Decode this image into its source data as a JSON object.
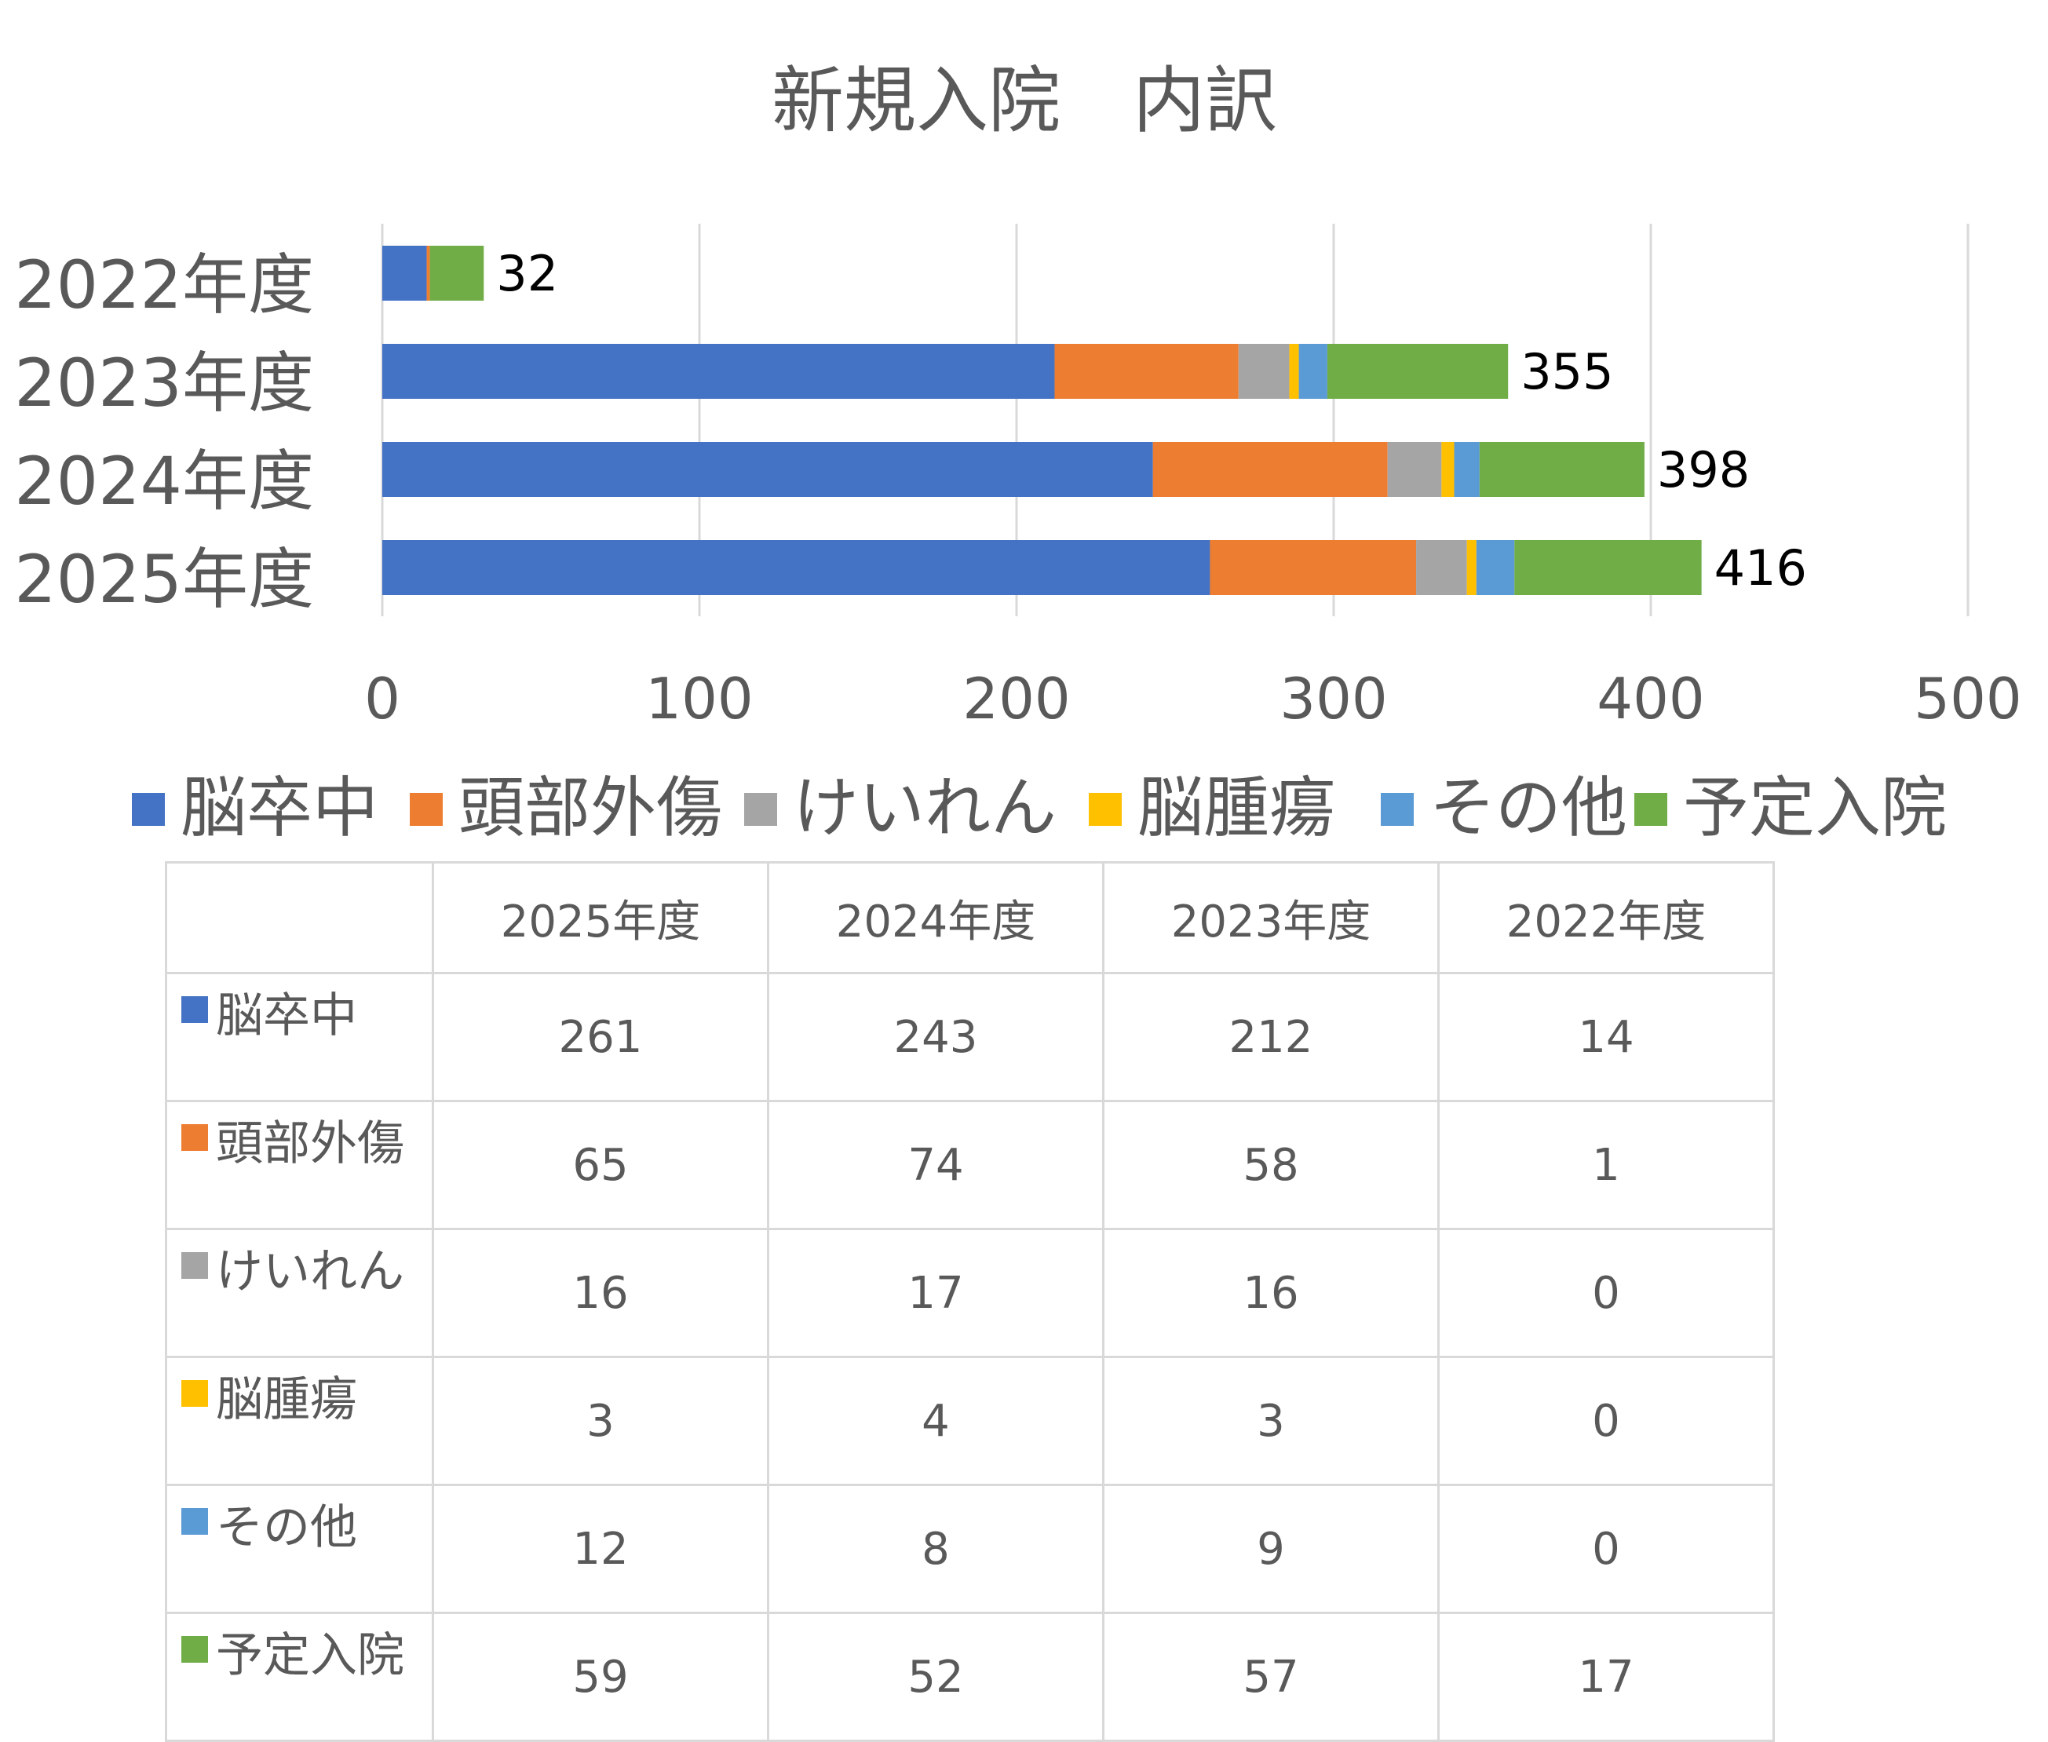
{
  "chart_data": {
    "type": "bar",
    "orientation": "horizontal",
    "stacked": true,
    "title": "新規入院　内訳",
    "categories": [
      "2022年度",
      "2023年度",
      "2024年度",
      "2025年度"
    ],
    "series": [
      {
        "name": "脳卒中",
        "color": "#4472C4",
        "values": [
          14,
          212,
          243,
          261
        ]
      },
      {
        "name": "頭部外傷",
        "color": "#ED7D31",
        "values": [
          1,
          58,
          74,
          65
        ]
      },
      {
        "name": "けいれん",
        "color": "#A5A5A5",
        "values": [
          0,
          16,
          17,
          16
        ]
      },
      {
        "name": "脳腫瘍",
        "color": "#FFC000",
        "values": [
          0,
          3,
          4,
          3
        ]
      },
      {
        "name": "その他",
        "color": "#5B9BD5",
        "values": [
          0,
          9,
          8,
          12
        ]
      },
      {
        "name": "予定入院",
        "color": "#70AD47",
        "values": [
          17,
          57,
          52,
          59
        ]
      }
    ],
    "totals": [
      "32",
      "355",
      "398",
      "416"
    ],
    "xlim": [
      0,
      500
    ],
    "xticks": [
      "0",
      "100",
      "200",
      "300",
      "400",
      "500"
    ],
    "grid": "vertical",
    "legend_position": "bottom",
    "data_table": {
      "columns": [
        "2025年度",
        "2024年度",
        "2023年度",
        "2022年度"
      ],
      "rows": [
        {
          "label": "脳卒中",
          "values": [
            "261",
            "243",
            "212",
            "14"
          ]
        },
        {
          "label": "頭部外傷",
          "values": [
            "65",
            "74",
            "58",
            "1"
          ]
        },
        {
          "label": "けいれん",
          "values": [
            "16",
            "17",
            "16",
            "0"
          ]
        },
        {
          "label": "脳腫瘍",
          "values": [
            "3",
            "4",
            "3",
            "0"
          ]
        },
        {
          "label": "その他",
          "values": [
            "12",
            "8",
            "9",
            "0"
          ]
        },
        {
          "label": "予定入院",
          "values": [
            "59",
            "52",
            "57",
            "17"
          ]
        }
      ]
    }
  }
}
